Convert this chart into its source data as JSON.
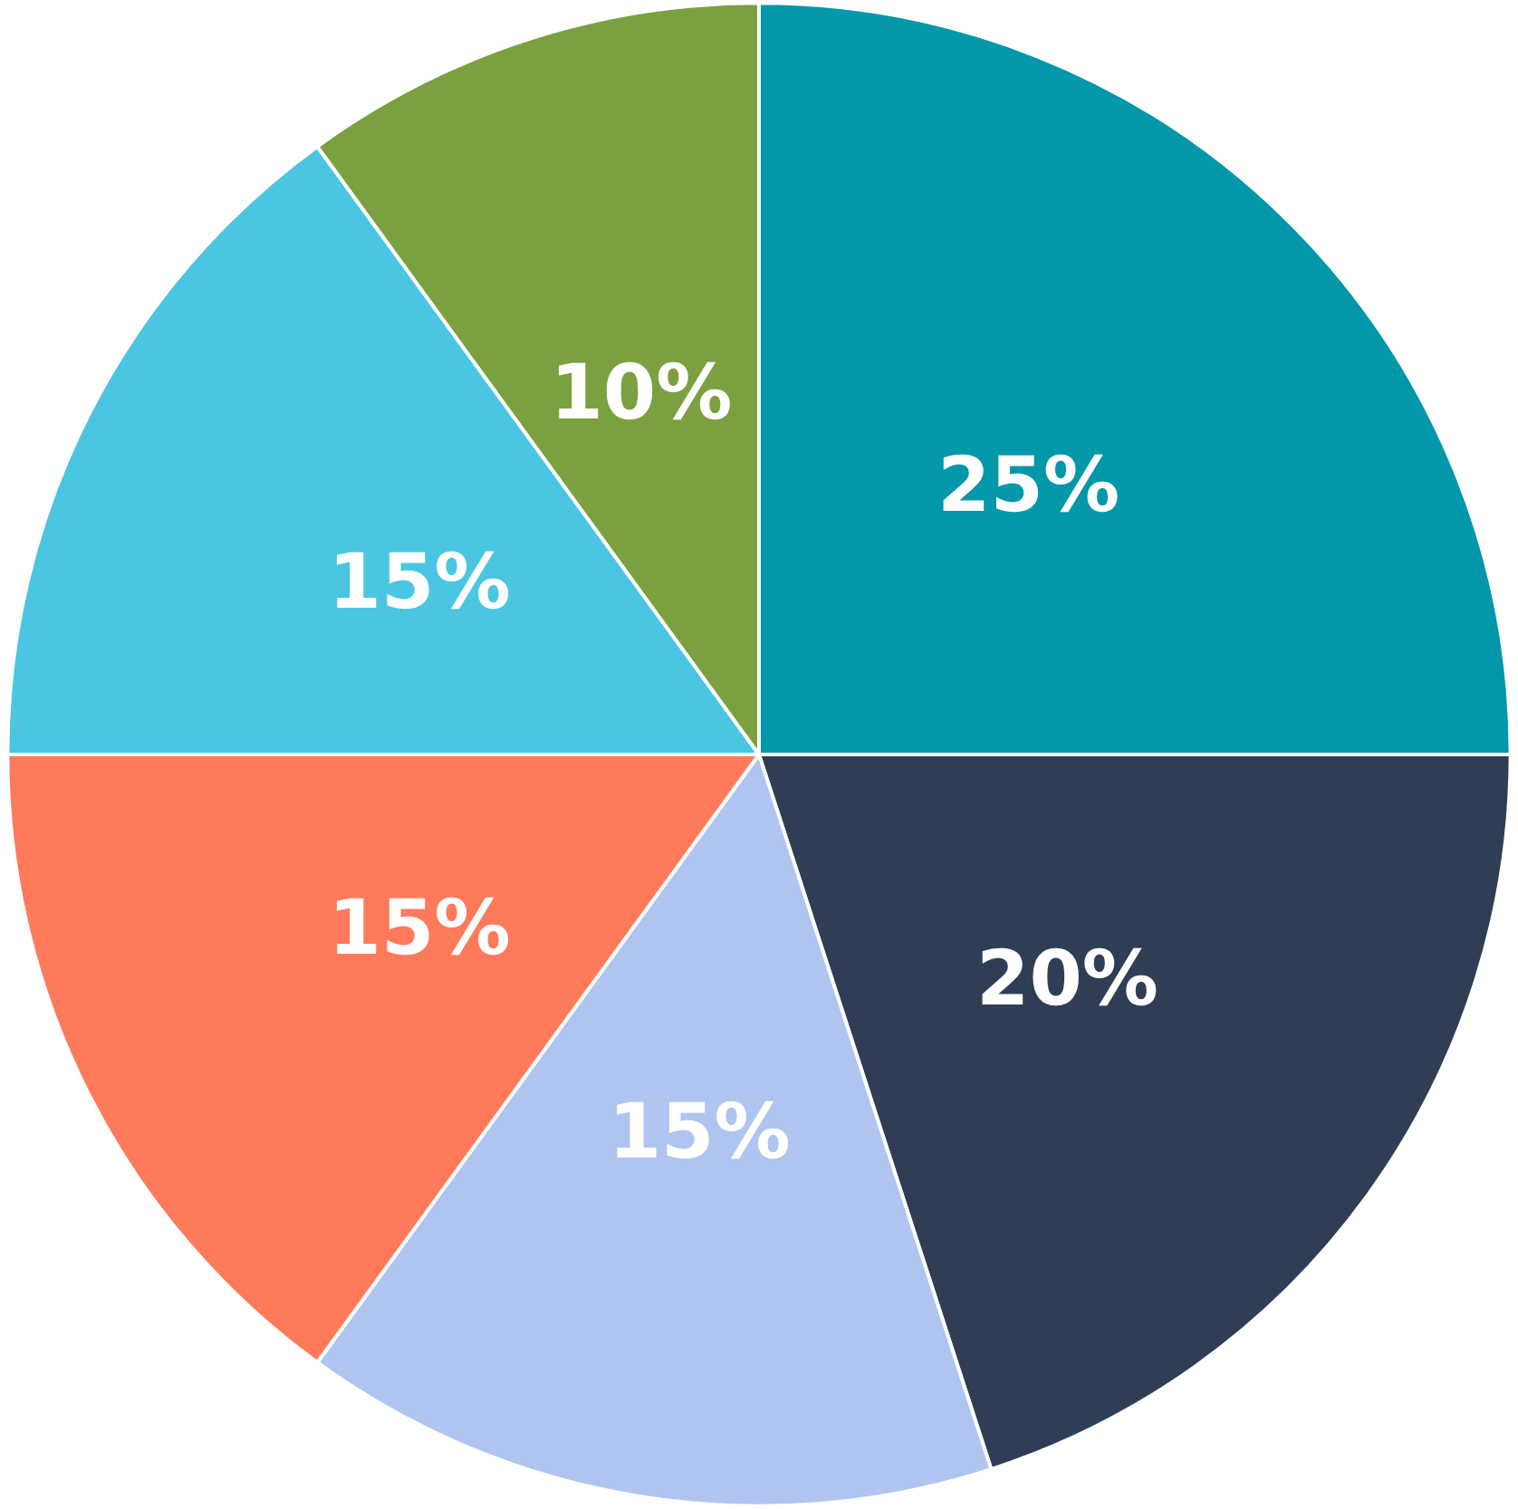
{
  "chart_data": {
    "type": "pie",
    "categories": [
      null,
      null,
      null,
      null,
      null,
      null
    ],
    "values": [
      25,
      20,
      15,
      15,
      15,
      10
    ],
    "colors": [
      "#0397aa",
      "#2f3e55",
      "#b0c4f0",
      "#fe7a5a",
      "#4bc6e2",
      "#7ba03f"
    ],
    "value_labels": [
      "25%",
      "20%",
      "15%",
      "15%",
      "15%",
      "10%"
    ]
  }
}
